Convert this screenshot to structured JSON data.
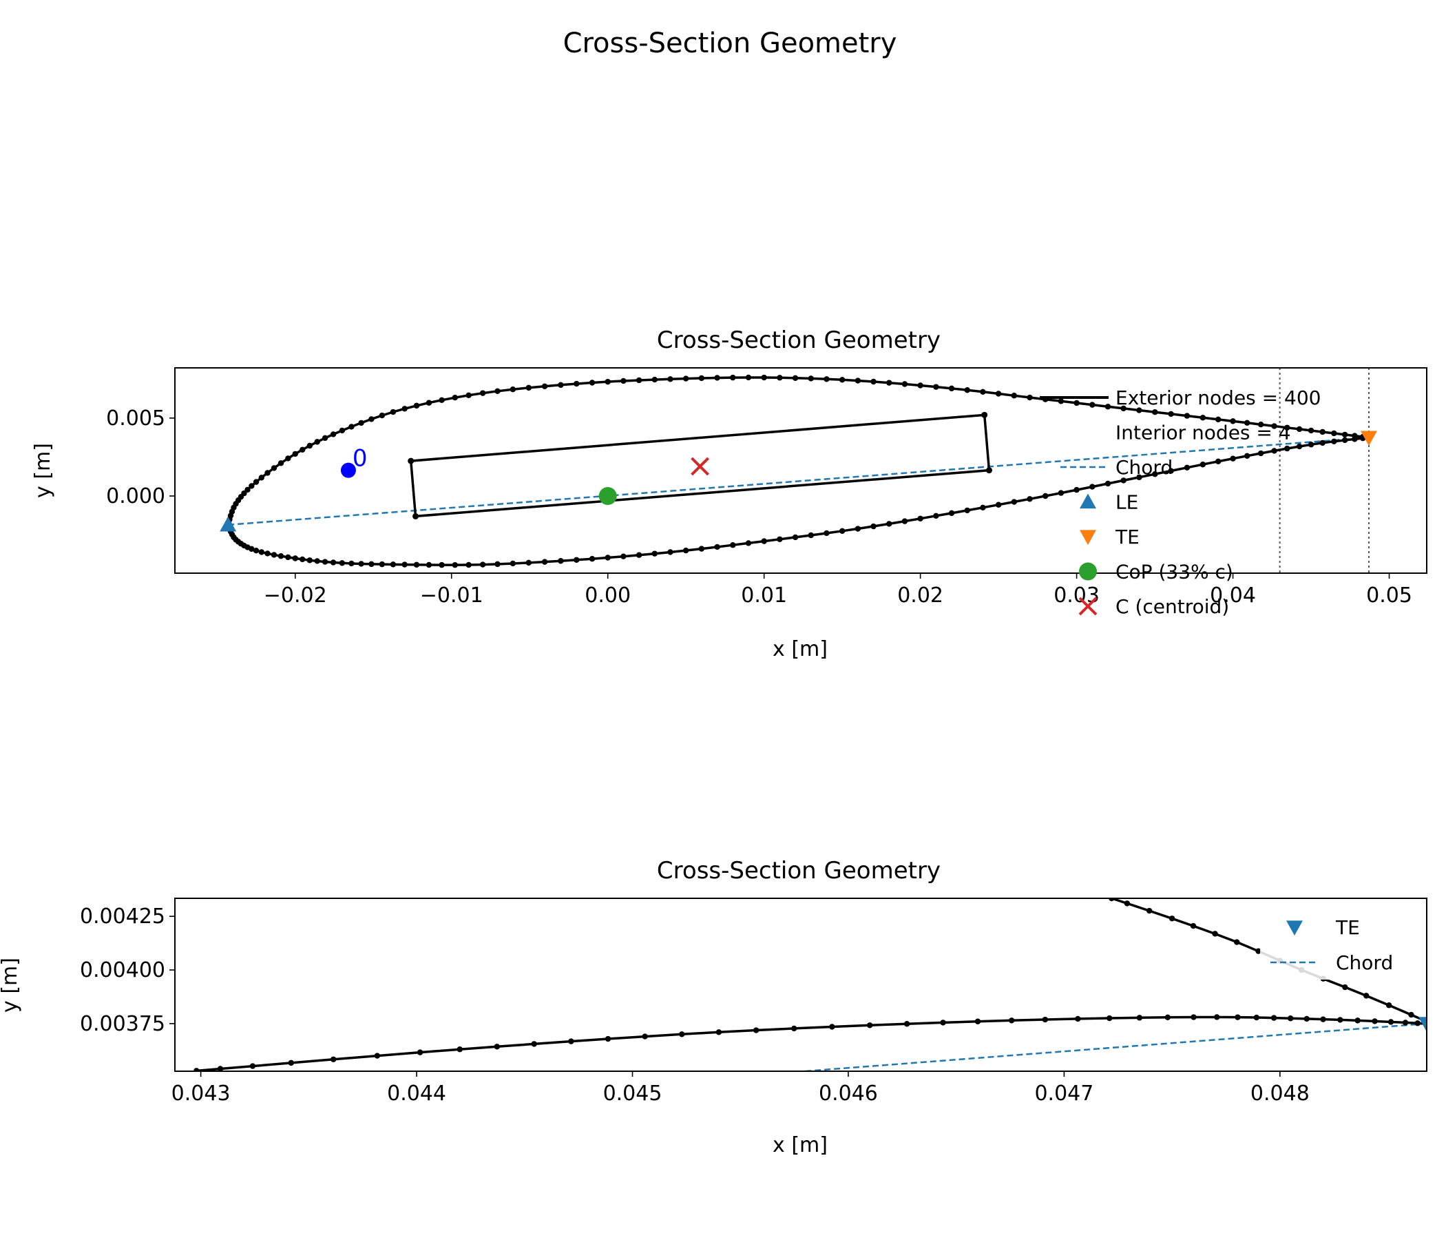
{
  "figure": {
    "suptitle": "Cross-Section Geometry"
  },
  "colors": {
    "foil": "#000000",
    "chord": "#1f77b4",
    "le": "#1f77b4",
    "te": "#ff7f0e",
    "cop": "#2ca02c",
    "centroid": "#d62728",
    "start_marker": "#0000ff",
    "te_zoom": "#1f77b4"
  },
  "chart_data": [
    {
      "type": "line",
      "title": "Cross-Section Geometry",
      "xlabel": "x [m]",
      "ylabel": "y [m]",
      "xlim": [
        -0.0277,
        0.0524
      ],
      "ylim": [
        -0.00495,
        0.00822
      ],
      "xticks": [
        -0.02,
        -0.01,
        0.0,
        0.01,
        0.02,
        0.03,
        0.04,
        0.05
      ],
      "xtick_labels": [
        "−0.02",
        "−0.01",
        "0.00",
        "0.01",
        "0.02",
        "0.03",
        "0.04",
        "0.05"
      ],
      "yticks": [
        0.0,
        0.005
      ],
      "ytick_labels": [
        "0.000",
        "0.005"
      ],
      "grid": false,
      "legend_position": "right",
      "airfoil": {
        "exterior_node_count": 400,
        "le": [
          -0.0243,
          -0.00185
        ],
        "te": [
          0.0487,
          0.00375
        ],
        "profile": {
          "upper_x": [
            -0.0243,
            -0.0238,
            -0.0225,
            -0.02,
            -0.017,
            -0.013,
            -0.008,
            -0.002,
            0.004,
            0.01,
            0.016,
            0.022,
            0.028,
            0.034,
            0.04,
            0.045,
            0.0487
          ],
          "upper_y": [
            -0.00185,
            -0.0005,
            0.0009,
            0.0027,
            0.0042,
            0.0056,
            0.0066,
            0.0072,
            0.0075,
            0.0076,
            0.0074,
            0.0069,
            0.0062,
            0.0055,
            0.0048,
            0.0042,
            0.00375
          ],
          "lower_x": [
            -0.0243,
            -0.0238,
            -0.0225,
            -0.02,
            -0.017,
            -0.013,
            -0.008,
            -0.002,
            0.004,
            0.01,
            0.016,
            0.022,
            0.028,
            0.034,
            0.04,
            0.045,
            0.0487
          ],
          "lower_y": [
            -0.00185,
            -0.0028,
            -0.0035,
            -0.004,
            -0.0043,
            -0.0044,
            -0.0044,
            -0.0041,
            -0.0036,
            -0.0029,
            -0.0021,
            -0.0011,
            0.0,
            0.0012,
            0.0024,
            0.0033,
            0.00375
          ]
        }
      },
      "interior": {
        "node_count": 4,
        "x": [
          -0.0126,
          0.0241,
          0.0244,
          -0.0123
        ],
        "y": [
          0.00225,
          0.0052,
          0.00165,
          -0.0013
        ]
      },
      "start_node": {
        "x": -0.0166,
        "y": 0.00165,
        "label": "0"
      },
      "chord": {
        "x": [
          -0.0243,
          0.0487
        ],
        "y": [
          -0.00185,
          0.00375
        ]
      },
      "cop": {
        "x": 0.0,
        "y": 0.0
      },
      "centroid": {
        "x": 0.0059,
        "y": 0.0019
      },
      "vlines_x": [
        0.043,
        0.0487
      ],
      "legend": [
        "Exterior nodes = 400",
        "Interior nodes = 4",
        "Chord",
        "LE",
        "TE",
        "CoP (33% c)",
        "C (centroid)"
      ]
    },
    {
      "type": "line",
      "title": "Cross-Section Geometry",
      "xlabel": "x [m]",
      "ylabel": "y [m]",
      "xlim": [
        0.04288,
        0.04868
      ],
      "ylim": [
        0.003528,
        0.004334
      ],
      "xticks": [
        0.043,
        0.044,
        0.045,
        0.046,
        0.047,
        0.048
      ],
      "xtick_labels": [
        "0.043",
        "0.044",
        "0.045",
        "0.046",
        "0.047",
        "0.048"
      ],
      "yticks": [
        0.00375,
        0.004,
        0.00425
      ],
      "ytick_labels": [
        "0.00375",
        "0.00400",
        "0.00425"
      ],
      "grid": false,
      "legend_position": "top-right",
      "upper_surface": {
        "x": [
          0.04298,
          0.0442,
          0.0454,
          0.0466,
          0.0476,
          0.0482,
          0.04868
        ],
        "y": [
          0.00353,
          0.00363,
          0.00371,
          0.00376,
          0.00378,
          0.00377,
          0.00375
        ]
      },
      "lower_surface": {
        "x": [
          0.04722,
          0.0475,
          0.0478,
          0.0481,
          0.0484,
          0.04868
        ],
        "y": [
          0.004334,
          0.00424,
          0.00413,
          0.004,
          0.00388,
          0.00376
        ]
      },
      "chord": {
        "x": [
          0.0458,
          0.04868
        ],
        "y": [
          0.003528,
          0.00375
        ]
      },
      "legend": [
        "TE",
        "Chord"
      ]
    }
  ]
}
